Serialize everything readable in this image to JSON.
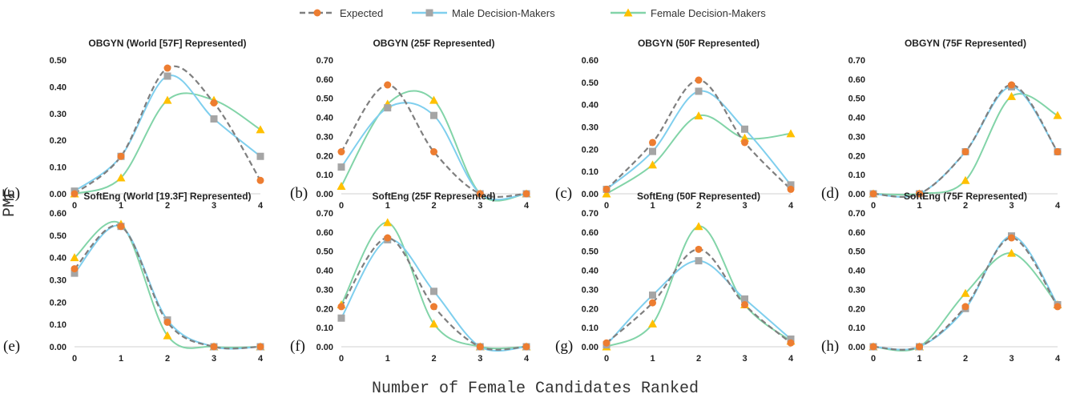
{
  "colors": {
    "expected": "#7f7f7f",
    "expected_marker": "#ed7d31",
    "male": "#7fcfee",
    "male_marker": "#a5a5a5",
    "female": "#82d4a8",
    "female_marker": "#ffc000",
    "axis": "#d9d9d9"
  },
  "legend": {
    "items": [
      {
        "key": "expected",
        "label": "Expected"
      },
      {
        "key": "male",
        "label": "Male Decision-Makers"
      },
      {
        "key": "female",
        "label": "Female Decision-Makers"
      }
    ]
  },
  "axes": {
    "xlabel": "Number of Female Candidates Ranked",
    "ylabel": "PMF"
  },
  "chart_data": [
    {
      "type": "line",
      "panel": "(a)",
      "title": "OBGYN (World [57F] Represented)",
      "x": [
        0,
        1,
        2,
        3,
        4
      ],
      "ylim": [
        0,
        0.5
      ],
      "yticks": [
        "0.00",
        "0.10",
        "0.20",
        "0.30",
        "0.40",
        "0.50"
      ],
      "series": [
        {
          "name": "Expected",
          "values": [
            0.0,
            0.14,
            0.47,
            0.34,
            0.05
          ]
        },
        {
          "name": "Male Decision-Makers",
          "values": [
            0.01,
            0.14,
            0.44,
            0.28,
            0.14
          ]
        },
        {
          "name": "Female Decision-Makers",
          "values": [
            0.0,
            0.06,
            0.35,
            0.35,
            0.24
          ]
        }
      ]
    },
    {
      "type": "line",
      "panel": "(b)",
      "title": "OBGYN (25F Represented)",
      "x": [
        0,
        1,
        2,
        3,
        4
      ],
      "ylim": [
        0,
        0.7
      ],
      "yticks": [
        "0.00",
        "0.10",
        "0.20",
        "0.30",
        "0.40",
        "0.50",
        "0.60",
        "0.70"
      ],
      "series": [
        {
          "name": "Expected",
          "values": [
            0.22,
            0.57,
            0.22,
            0.0,
            0.0
          ]
        },
        {
          "name": "Male Decision-Makers",
          "values": [
            0.14,
            0.45,
            0.41,
            0.0,
            0.0
          ]
        },
        {
          "name": "Female Decision-Makers",
          "values": [
            0.04,
            0.47,
            0.49,
            0.0,
            0.0
          ]
        }
      ]
    },
    {
      "type": "line",
      "panel": "(c)",
      "title": "OBGYN (50F Represented)",
      "x": [
        0,
        1,
        2,
        3,
        4
      ],
      "ylim": [
        0,
        0.6
      ],
      "yticks": [
        "0.00",
        "0.10",
        "0.20",
        "0.30",
        "0.40",
        "0.50",
        "0.60"
      ],
      "series": [
        {
          "name": "Expected",
          "values": [
            0.02,
            0.23,
            0.51,
            0.23,
            0.02
          ]
        },
        {
          "name": "Male Decision-Makers",
          "values": [
            0.02,
            0.19,
            0.46,
            0.29,
            0.04
          ]
        },
        {
          "name": "Female Decision-Makers",
          "values": [
            0.0,
            0.13,
            0.35,
            0.25,
            0.27
          ]
        }
      ]
    },
    {
      "type": "line",
      "panel": "(d)",
      "title": "OBGYN (75F Represented)",
      "x": [
        0,
        1,
        2,
        3,
        4
      ],
      "ylim": [
        0,
        0.7
      ],
      "yticks": [
        "0.00",
        "0.10",
        "0.20",
        "0.30",
        "0.40",
        "0.50",
        "0.60",
        "0.70"
      ],
      "series": [
        {
          "name": "Expected",
          "values": [
            0.0,
            0.0,
            0.22,
            0.57,
            0.22
          ]
        },
        {
          "name": "Male Decision-Makers",
          "values": [
            0.0,
            0.0,
            0.22,
            0.56,
            0.22
          ]
        },
        {
          "name": "Female Decision-Makers",
          "values": [
            0.0,
            0.0,
            0.07,
            0.51,
            0.41
          ]
        }
      ]
    },
    {
      "type": "line",
      "panel": "(e)",
      "title": "SoftEng (World [19.3F] Represented)",
      "x": [
        0,
        1,
        2,
        3,
        4
      ],
      "ylim": [
        0,
        0.6
      ],
      "yticks": [
        "0.00",
        "0.10",
        "0.20",
        "0.30",
        "0.40",
        "0.50",
        "0.60"
      ],
      "series": [
        {
          "name": "Expected",
          "values": [
            0.35,
            0.54,
            0.11,
            0.0,
            0.0
          ]
        },
        {
          "name": "Male Decision-Makers",
          "values": [
            0.33,
            0.54,
            0.12,
            0.0,
            0.0
          ]
        },
        {
          "name": "Female Decision-Makers",
          "values": [
            0.4,
            0.55,
            0.05,
            0.0,
            0.0
          ]
        }
      ]
    },
    {
      "type": "line",
      "panel": "(f)",
      "title": "SoftEng (25F Represented)",
      "x": [
        0,
        1,
        2,
        3,
        4
      ],
      "ylim": [
        0,
        0.7
      ],
      "yticks": [
        "0.00",
        "0.10",
        "0.20",
        "0.30",
        "0.40",
        "0.50",
        "0.60",
        "0.70"
      ],
      "series": [
        {
          "name": "Expected",
          "values": [
            0.21,
            0.57,
            0.21,
            0.0,
            0.0
          ]
        },
        {
          "name": "Male Decision-Makers",
          "values": [
            0.15,
            0.56,
            0.29,
            0.0,
            0.0
          ]
        },
        {
          "name": "Female Decision-Makers",
          "values": [
            0.22,
            0.65,
            0.12,
            0.0,
            0.0
          ]
        }
      ]
    },
    {
      "type": "line",
      "panel": "(g)",
      "title": "SoftEng (50F Represented)",
      "x": [
        0,
        1,
        2,
        3,
        4
      ],
      "ylim": [
        0,
        0.7
      ],
      "yticks": [
        "0.00",
        "0.10",
        "0.20",
        "0.30",
        "0.40",
        "0.50",
        "0.60",
        "0.70"
      ],
      "series": [
        {
          "name": "Expected",
          "values": [
            0.02,
            0.23,
            0.51,
            0.22,
            0.02
          ]
        },
        {
          "name": "Male Decision-Makers",
          "values": [
            0.01,
            0.27,
            0.45,
            0.25,
            0.04
          ]
        },
        {
          "name": "Female Decision-Makers",
          "values": [
            0.0,
            0.12,
            0.63,
            0.22,
            0.03
          ]
        }
      ]
    },
    {
      "type": "line",
      "panel": "(h)",
      "title": "SoftEng (75F Represented)",
      "x": [
        0,
        1,
        2,
        3,
        4
      ],
      "ylim": [
        0,
        0.7
      ],
      "yticks": [
        "0.00",
        "0.10",
        "0.20",
        "0.30",
        "0.40",
        "0.50",
        "0.60",
        "0.70"
      ],
      "series": [
        {
          "name": "Expected",
          "values": [
            0.0,
            0.0,
            0.21,
            0.57,
            0.21
          ]
        },
        {
          "name": "Male Decision-Makers",
          "values": [
            0.0,
            0.0,
            0.2,
            0.58,
            0.22
          ]
        },
        {
          "name": "Female Decision-Makers",
          "values": [
            0.0,
            0.0,
            0.28,
            0.49,
            0.22
          ]
        }
      ]
    }
  ]
}
